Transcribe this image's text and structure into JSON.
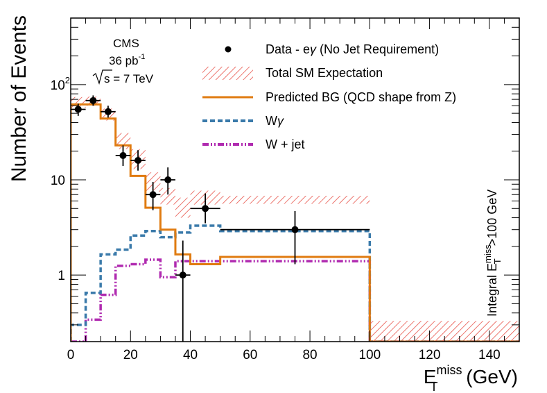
{
  "chart_data": {
    "type": "histogram",
    "title": "",
    "xlabel": {
      "base": "E",
      "sub": "T",
      "sup": "miss",
      "unit": " (GeV)"
    },
    "ylabel": "Number of Events",
    "xlim": [
      0,
      150
    ],
    "ylim": [
      0.2,
      500
    ],
    "yscale": "log",
    "x_ticks": [
      0,
      20,
      40,
      60,
      80,
      100,
      120,
      140
    ],
    "y_ticks": [
      {
        "value": 1,
        "label": "1"
      },
      {
        "value": 10,
        "label": "10"
      },
      {
        "value": 100,
        "label": "10",
        "sup": "2"
      }
    ],
    "cms_label": {
      "line1": "CMS",
      "lumi": "36 pb",
      "lumi_sup": "-1",
      "energy_prefix": "s",
      "energy_suffix": " = 7 TeV"
    },
    "side_label": {
      "prefix": "Integral E",
      "sub": "T",
      "sup": "miss",
      "suffix": ">100 GeV"
    },
    "colors": {
      "data": "#000000",
      "sm_hatch": "#e8534a",
      "predicted": "#e07b10",
      "wgamma": "#3a7aaa",
      "wjet": "#b02ab0"
    },
    "bin_edges": [
      0,
      5,
      10,
      15,
      20,
      25,
      30,
      35,
      40,
      50,
      100,
      150
    ],
    "legend": [
      {
        "label": "Data - e",
        "greek": "γ",
        "suffix": " (No Jet Requirement)",
        "style": "data"
      },
      {
        "label": "Total SM Expectation",
        "style": "hatch"
      },
      {
        "label": "Predicted BG (QCD shape from Z)",
        "style": "predicted"
      },
      {
        "label": "W",
        "greek": "γ",
        "style": "wgamma"
      },
      {
        "label": "W + jet",
        "style": "wjet"
      }
    ],
    "series": [
      {
        "name": "Data - eγ (No Jet Requirement)",
        "style": "data",
        "x": [
          2.5,
          7.5,
          12.5,
          17.5,
          22.5,
          27.5,
          32.5,
          37.5,
          45,
          75
        ],
        "xerr": [
          2.5,
          2.5,
          2.5,
          2.5,
          2.5,
          2.5,
          2.5,
          2.5,
          5,
          25
        ],
        "y": [
          55,
          68,
          52,
          18,
          16,
          7,
          10,
          1,
          5,
          3
        ],
        "ylow": [
          47,
          60,
          45,
          14,
          12.5,
          4.8,
          7,
          0.2,
          3.5,
          1.3
        ],
        "yhigh": [
          63,
          77,
          60,
          23,
          20.5,
          9.5,
          13.5,
          2.3,
          7.2,
          4.7
        ]
      },
      {
        "name": "Total SM Expectation",
        "style": "hatch",
        "low": [
          57,
          60,
          42,
          21,
          13,
          7.5,
          5.5,
          4,
          5.5,
          5.6,
          0.2
        ],
        "high": [
          74,
          75,
          56,
          31,
          21,
          12,
          8.2,
          6.5,
          7.7,
          6.8,
          0.33
        ]
      },
      {
        "name": "Predicted BG (QCD shape from Z)",
        "style": "predicted",
        "values": [
          62,
          62,
          44,
          23,
          11,
          5.1,
          3,
          1.65,
          1.3,
          1.55,
          0.2
        ]
      },
      {
        "name": "Wγ",
        "style": "wgamma",
        "values": [
          0.3,
          0.65,
          1.65,
          1.85,
          2.6,
          2.9,
          2.5,
          2.8,
          3.3,
          2.9,
          0.2
        ]
      },
      {
        "name": "W + jet",
        "style": "wjet",
        "values": [
          0.2,
          0.34,
          0.62,
          1.25,
          1.3,
          1.45,
          0.95,
          1.4,
          1.4,
          1.4,
          0.2
        ]
      }
    ]
  }
}
